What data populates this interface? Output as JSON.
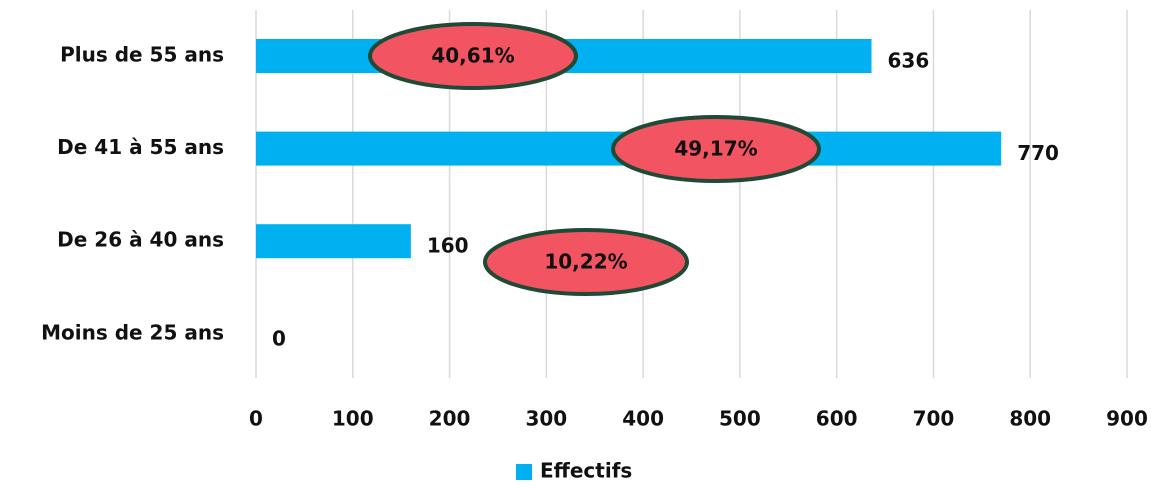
{
  "chart_data": {
    "type": "hbar",
    "categories": [
      "Plus de 55 ans",
      "De 41 à 55 ans",
      "De 26 à 40 ans",
      "Moins de 25 ans"
    ],
    "series": [
      {
        "name": "Effectifs",
        "color": "#00b0f0",
        "values": [
          636,
          770,
          160,
          0
        ]
      }
    ],
    "xlim": [
      0,
      900
    ],
    "xticks": [
      0,
      100,
      200,
      300,
      400,
      500,
      600,
      700,
      800,
      900
    ],
    "grid": true,
    "legend": "bottom",
    "annotations": [
      "40,61%",
      "49,17%",
      "10,22%"
    ],
    "annotation_color": "#f25461",
    "annotation_border": "#1f4a36"
  }
}
